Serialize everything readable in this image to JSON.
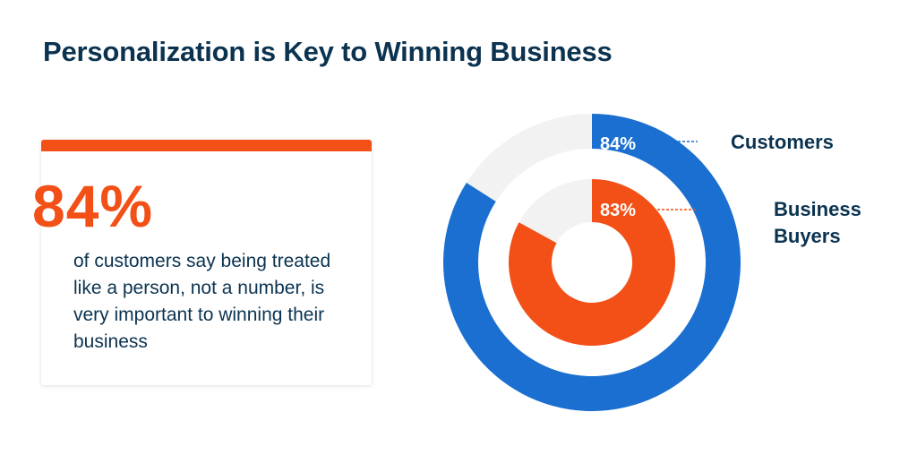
{
  "title": "Personalization is Key to Winning Business",
  "colors": {
    "title": "#0b3350",
    "accent": "#f35017",
    "blue": "#1b6fd0",
    "remainder": "#f2f2f2",
    "text": "#0b3350"
  },
  "callout": {
    "stat": "84%",
    "text": "of customers say being treated like a person, not a number, is very important to winning their business"
  },
  "chart_data": {
    "type": "pie",
    "variant": "nested-donut",
    "series": [
      {
        "name": "Customers",
        "value": 84,
        "label": "84%",
        "color": "#1b6fd0"
      },
      {
        "name": "Business Buyers",
        "value": 83,
        "label": "83%",
        "color": "#f35017"
      }
    ],
    "remainder_color": "#f2f2f2",
    "legend_lines": [
      [
        "Customers"
      ],
      [
        "Business",
        "Buyers"
      ]
    ]
  }
}
